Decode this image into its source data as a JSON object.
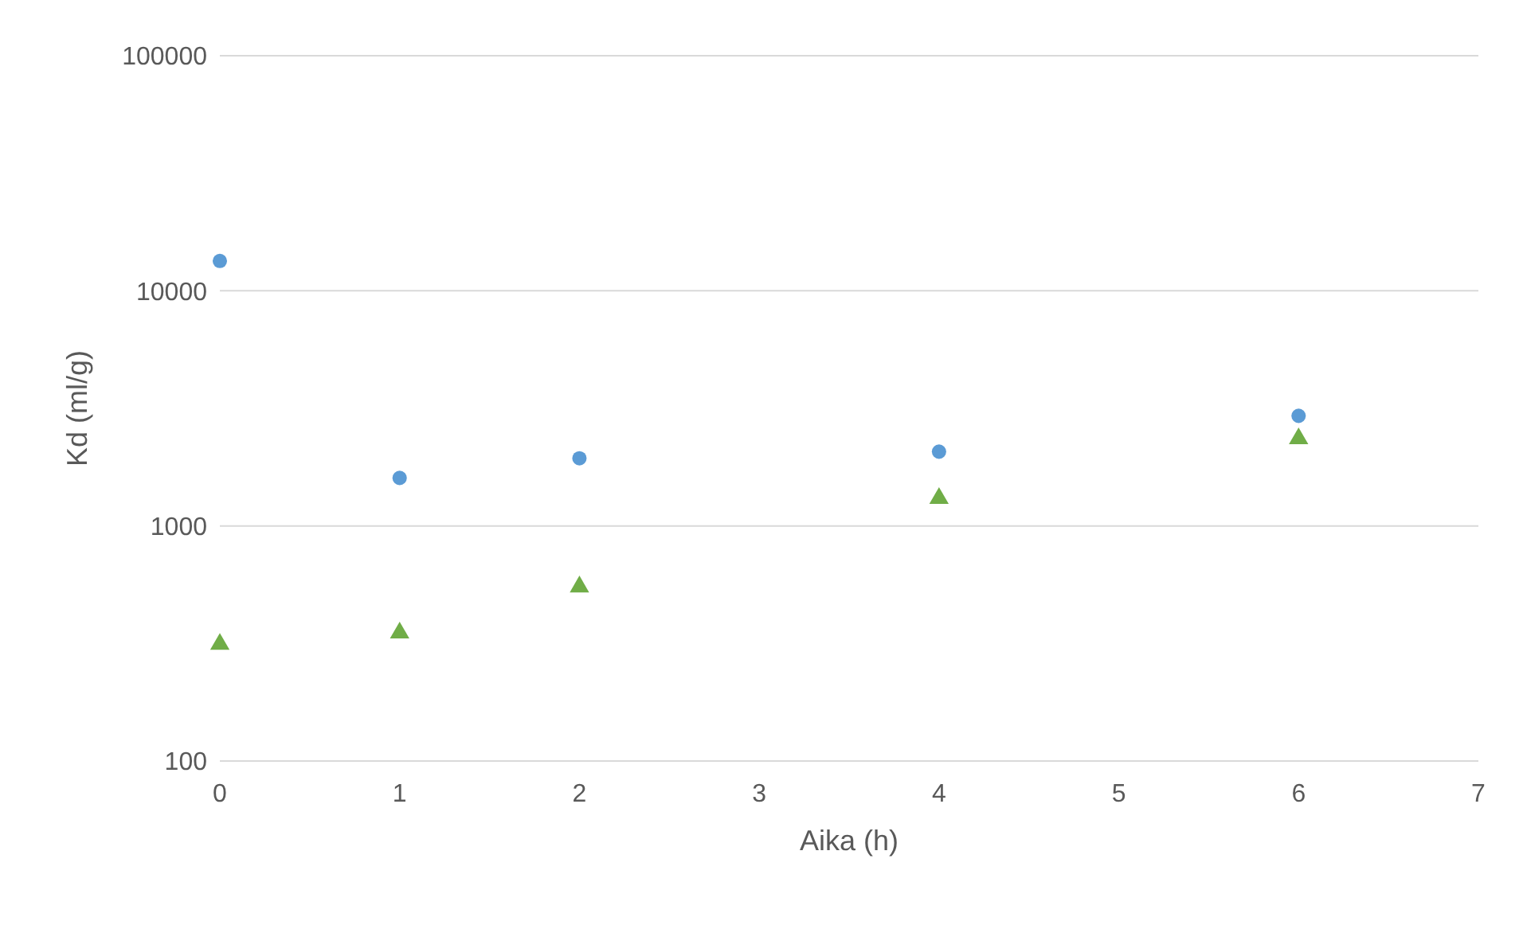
{
  "chart_data": {
    "type": "scatter",
    "xlabel": "Aika (h)",
    "ylabel": "Kd (ml/g)",
    "x": [
      0,
      1,
      2,
      4,
      6
    ],
    "series": [
      {
        "color": "#5b9bd5",
        "marker": "circle",
        "values": [
          13400,
          1600,
          1940,
          2070,
          2940
        ]
      },
      {
        "color": "#70ad47",
        "marker": "triangle",
        "values": [
          314,
          351,
          551,
          1310,
          2350
        ]
      }
    ],
    "xlim": [
      0,
      7
    ],
    "xticks": [
      0,
      1,
      2,
      3,
      4,
      5,
      6,
      7
    ],
    "ylim": [
      100,
      100000
    ],
    "yticks": [
      100,
      1000,
      10000,
      100000
    ],
    "log": "y",
    "grid": "y"
  }
}
